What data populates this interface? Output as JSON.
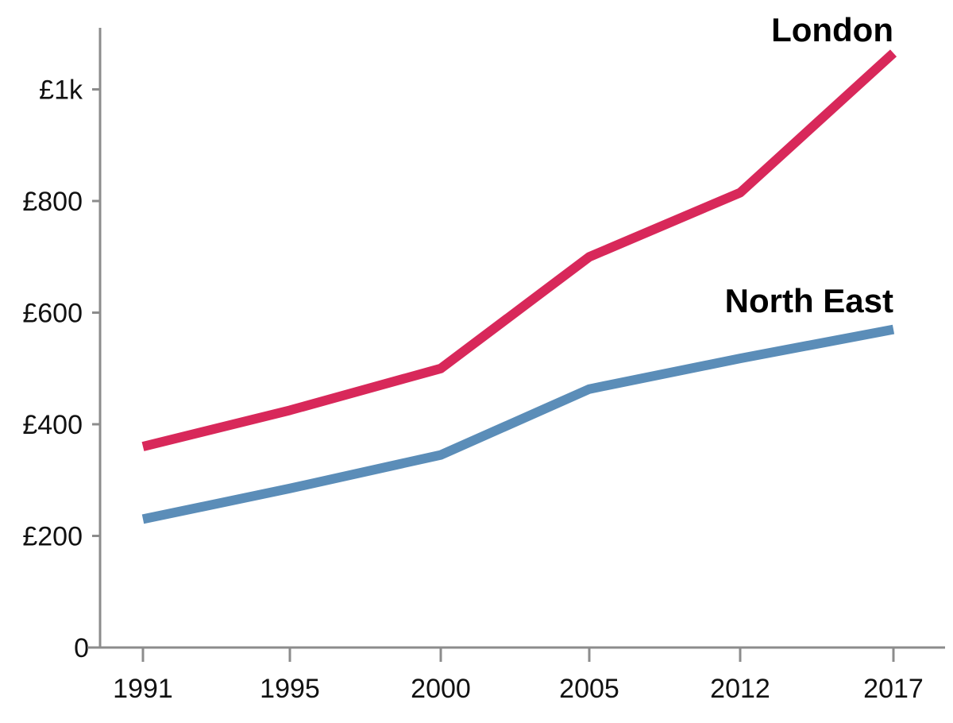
{
  "chart_data": {
    "type": "line",
    "title": "",
    "xlabel": "",
    "ylabel": "",
    "categories": [
      "1991",
      "1995",
      "2000",
      "2005",
      "2012",
      "2017"
    ],
    "y_ticks": [
      {
        "value": 0,
        "label": "0"
      },
      {
        "value": 200,
        "label": "£200"
      },
      {
        "value": 400,
        "label": "£400"
      },
      {
        "value": 600,
        "label": "£600"
      },
      {
        "value": 800,
        "label": "£800"
      },
      {
        "value": 1000,
        "label": "£1k"
      }
    ],
    "ylim": [
      0,
      1100
    ],
    "grid": false,
    "series": [
      {
        "name": "London",
        "color": "#d8285a",
        "values": [
          360,
          425,
          500,
          700,
          815,
          1065
        ]
      },
      {
        "name": "North East",
        "color": "#5b8db8",
        "values": [
          230,
          285,
          345,
          463,
          518,
          570
        ]
      }
    ]
  }
}
